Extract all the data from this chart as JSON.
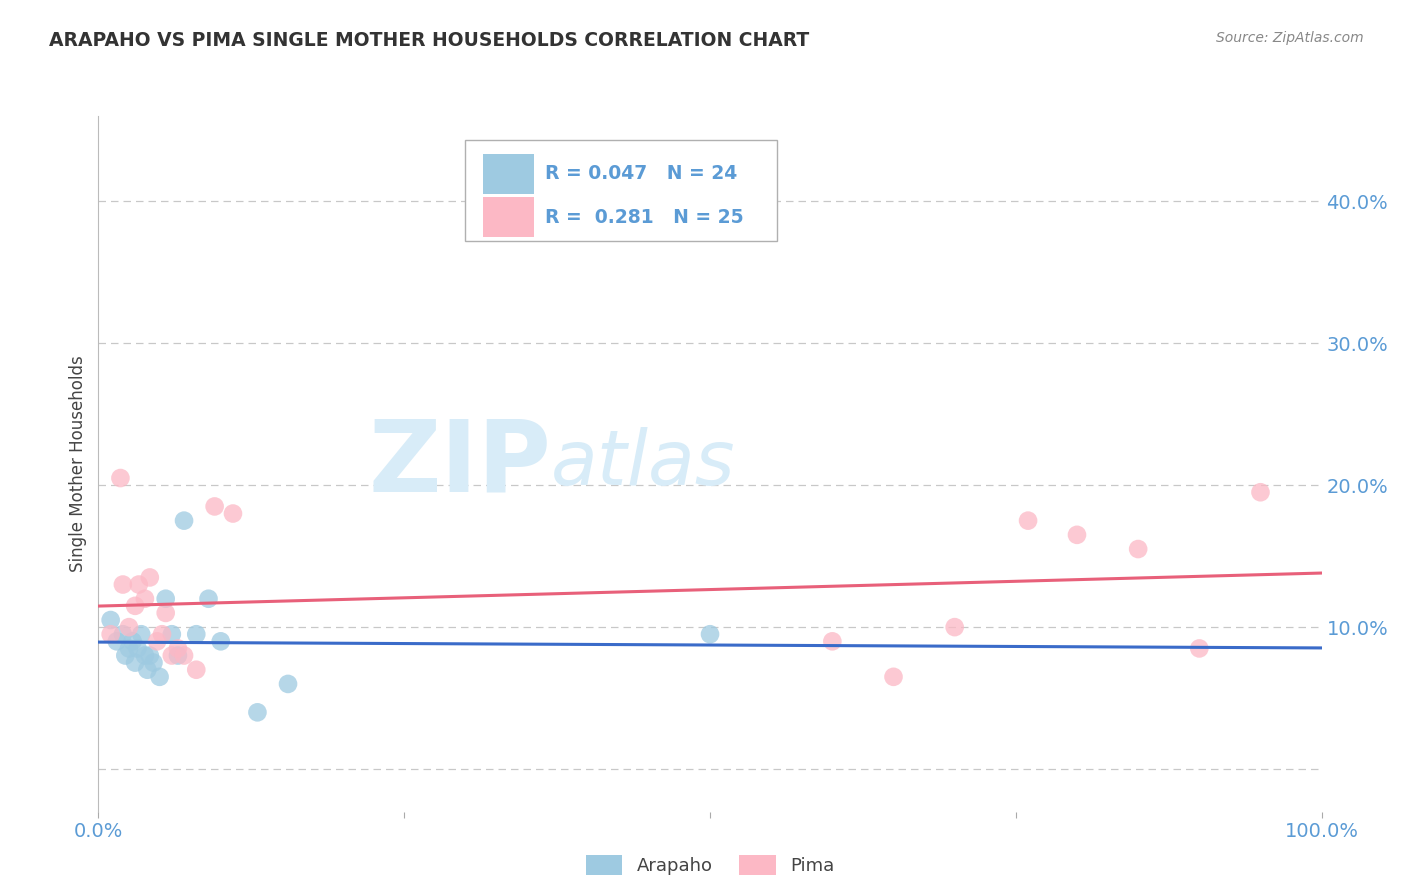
{
  "title": "ARAPAHO VS PIMA SINGLE MOTHER HOUSEHOLDS CORRELATION CHART",
  "source_text": "Source: ZipAtlas.com",
  "ylabel": "Single Mother Households",
  "arapaho_label": "Arapaho",
  "pima_label": "Pima",
  "arapaho_R": "0.047",
  "arapaho_N": "24",
  "pima_R": "0.281",
  "pima_N": "25",
  "xlim": [
    0.0,
    1.0
  ],
  "ylim": [
    -0.03,
    0.46
  ],
  "yticks": [
    0.0,
    0.1,
    0.2,
    0.3,
    0.4
  ],
  "xticks": [
    0.0,
    0.25,
    0.5,
    0.75,
    1.0
  ],
  "xtick_labels": [
    "0.0%",
    "",
    "",
    "",
    "100.0%"
  ],
  "ytick_labels": [
    "",
    "10.0%",
    "20.0%",
    "30.0%",
    "40.0%"
  ],
  "arapaho_color": "#9ecae1",
  "pima_color": "#fcb8c5",
  "arapaho_line_color": "#3a6bc9",
  "pima_line_color": "#e8607a",
  "watermark_zip": "ZIP",
  "watermark_atlas": "atlas",
  "watermark_color": "#d8ecf8",
  "arapaho_x": [
    0.01,
    0.015,
    0.02,
    0.022,
    0.025,
    0.028,
    0.03,
    0.032,
    0.035,
    0.038,
    0.04,
    0.042,
    0.045,
    0.05,
    0.055,
    0.06,
    0.065,
    0.07,
    0.08,
    0.09,
    0.1,
    0.13,
    0.155,
    0.5
  ],
  "arapaho_y": [
    0.105,
    0.09,
    0.095,
    0.08,
    0.085,
    0.09,
    0.075,
    0.085,
    0.095,
    0.08,
    0.07,
    0.08,
    0.075,
    0.065,
    0.12,
    0.095,
    0.08,
    0.175,
    0.095,
    0.12,
    0.09,
    0.04,
    0.06,
    0.095
  ],
  "pima_x": [
    0.01,
    0.018,
    0.02,
    0.025,
    0.03,
    0.033,
    0.038,
    0.042,
    0.048,
    0.052,
    0.055,
    0.06,
    0.065,
    0.07,
    0.08,
    0.095,
    0.11,
    0.6,
    0.65,
    0.7,
    0.76,
    0.8,
    0.85,
    0.9,
    0.95
  ],
  "pima_y": [
    0.095,
    0.205,
    0.13,
    0.1,
    0.115,
    0.13,
    0.12,
    0.135,
    0.09,
    0.095,
    0.11,
    0.08,
    0.085,
    0.08,
    0.07,
    0.185,
    0.18,
    0.09,
    0.065,
    0.1,
    0.175,
    0.165,
    0.155,
    0.085,
    0.195
  ],
  "background_color": "#ffffff",
  "grid_color": "#c8c8c8",
  "title_color": "#333333",
  "axis_label_color": "#444444",
  "tick_label_color": "#5b9bd5",
  "legend_color": "#5b9bd5"
}
